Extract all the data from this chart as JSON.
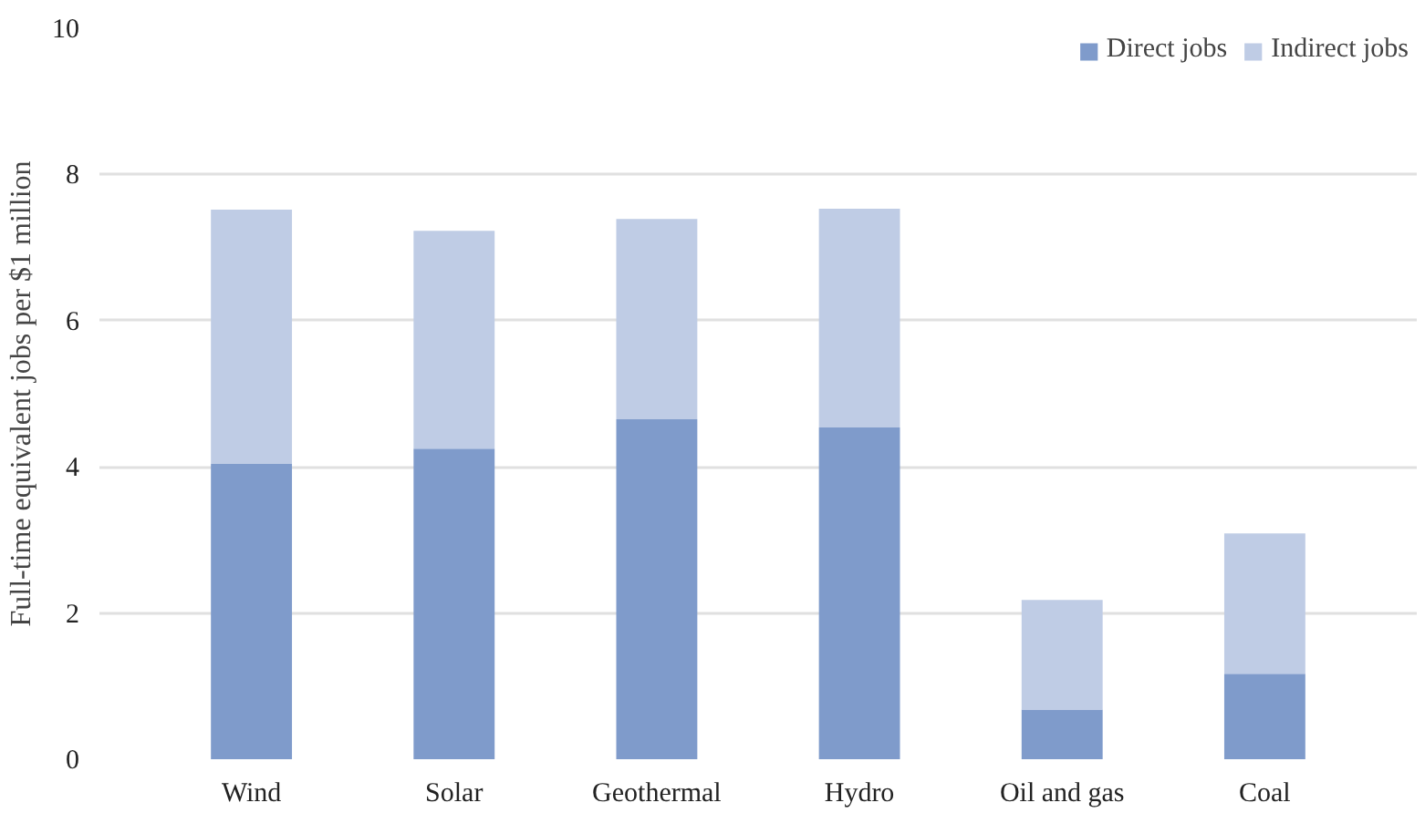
{
  "chart_data": {
    "type": "bar",
    "stacked": true,
    "ylabel": "Full-time equivalent jobs per $1 million",
    "categories": [
      "Wind",
      "Solar",
      "Geothermal",
      "Hydro",
      "Oil and gas",
      "Coal"
    ],
    "series": [
      {
        "name": "Direct jobs",
        "color": "#7f9bcb",
        "values": [
          4.04,
          4.25,
          4.65,
          4.54,
          0.68,
          1.17
        ]
      },
      {
        "name": "Indirect jobs",
        "color": "#bfcce5",
        "values": [
          3.48,
          2.98,
          2.74,
          2.99,
          1.5,
          1.92
        ]
      }
    ],
    "ylim": [
      0,
      10
    ],
    "yticks": [
      0,
      2,
      4,
      6,
      8,
      10
    ],
    "grid": "y",
    "legend": "top right"
  }
}
